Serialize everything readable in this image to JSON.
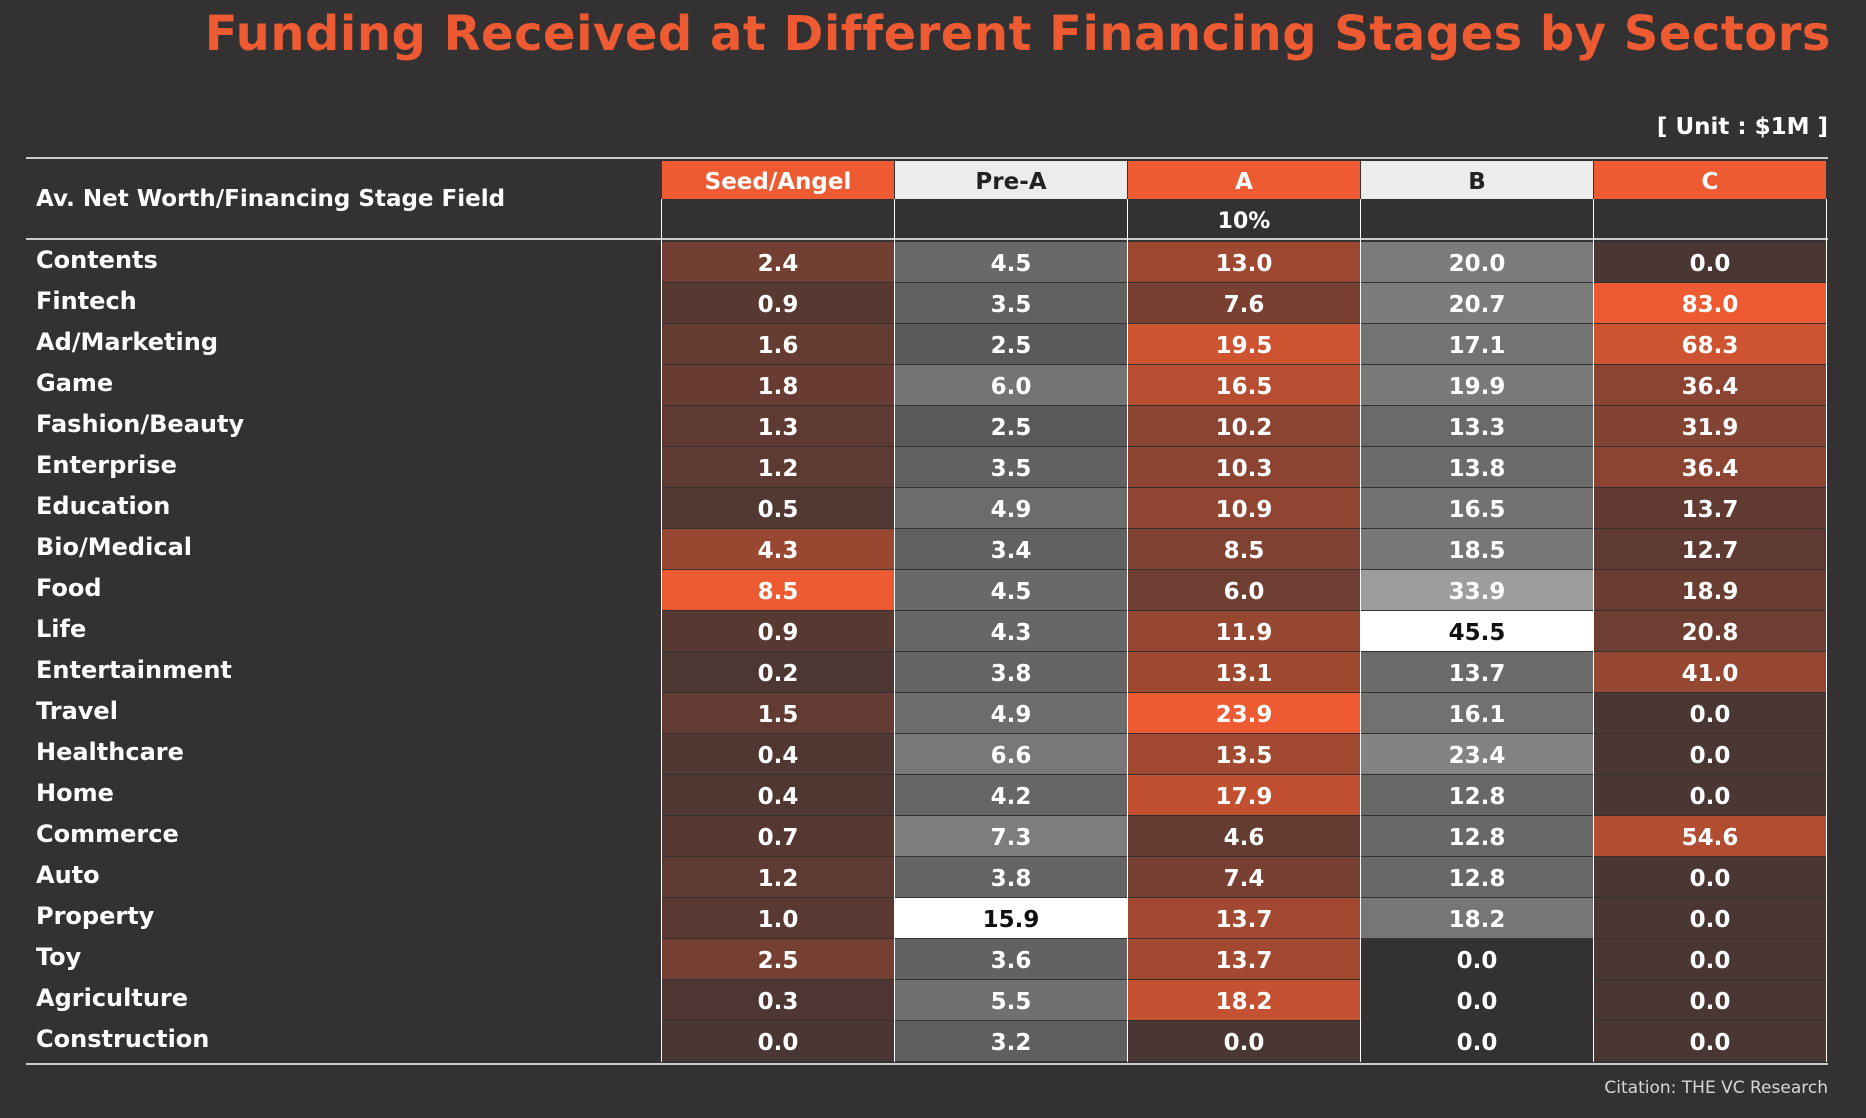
{
  "title": "Funding Received at Different Financing Stages by Sectors",
  "unit_label": "[ Unit : $1M ]",
  "citation": "Citation: THE VC Research",
  "colors": {
    "background": "#343132",
    "accent": "#ee5a31",
    "header_light": "#ececec",
    "white": "#ffffff"
  },
  "chart_data": {
    "type": "heatmap",
    "title": "Funding Received at Different Financing Stages by Sectors",
    "unit": "[ Unit : $1M ]",
    "row_header": "Av. Net Worth/Financing Stage Field",
    "subheader": "10%",
    "columns": [
      "Seed/Angel",
      "Pre-A",
      "A",
      "B",
      "C"
    ],
    "column_header_colors": [
      "#ee5a31",
      "#ececec",
      "#ee5a31",
      "#ececec",
      "#ee5a31"
    ],
    "column_palette": [
      "orange",
      "gray",
      "orange",
      "gray",
      "orange"
    ],
    "rows": [
      "Contents",
      "Fintech",
      "Ad/Marketing",
      "Game",
      "Fashion/Beauty",
      "Enterprise",
      "Education",
      "Bio/Medical",
      "Food",
      "Life",
      "Entertainment",
      "Travel",
      "Healthcare",
      "Home",
      "Commerce",
      "Auto",
      "Property",
      "Toy",
      "Agriculture",
      "Construction"
    ],
    "values": [
      [
        2.4,
        4.5,
        13.0,
        20.0,
        0.0
      ],
      [
        0.9,
        3.5,
        7.6,
        20.7,
        83.0
      ],
      [
        1.6,
        2.5,
        19.5,
        17.1,
        68.3
      ],
      [
        1.8,
        6.0,
        16.5,
        19.9,
        36.4
      ],
      [
        1.3,
        2.5,
        10.2,
        13.3,
        31.9
      ],
      [
        1.2,
        3.5,
        10.3,
        13.8,
        36.4
      ],
      [
        0.5,
        4.9,
        10.9,
        16.5,
        13.7
      ],
      [
        4.3,
        3.4,
        8.5,
        18.5,
        12.7
      ],
      [
        8.5,
        4.5,
        6.0,
        33.9,
        18.9
      ],
      [
        0.9,
        4.3,
        11.9,
        45.5,
        20.8
      ],
      [
        0.2,
        3.8,
        13.1,
        13.7,
        41.0
      ],
      [
        1.5,
        4.9,
        23.9,
        16.1,
        0.0
      ],
      [
        0.4,
        6.6,
        13.5,
        23.4,
        0.0
      ],
      [
        0.4,
        4.2,
        17.9,
        12.8,
        0.0
      ],
      [
        0.7,
        7.3,
        4.6,
        12.8,
        54.6
      ],
      [
        1.2,
        3.8,
        7.4,
        12.8,
        0.0
      ],
      [
        1.0,
        15.9,
        13.7,
        18.2,
        0.0
      ],
      [
        2.5,
        3.6,
        13.7,
        0.0,
        0.0
      ],
      [
        0.3,
        5.5,
        18.2,
        0.0,
        0.0
      ],
      [
        0.0,
        3.2,
        0.0,
        0.0,
        0.0
      ]
    ]
  }
}
